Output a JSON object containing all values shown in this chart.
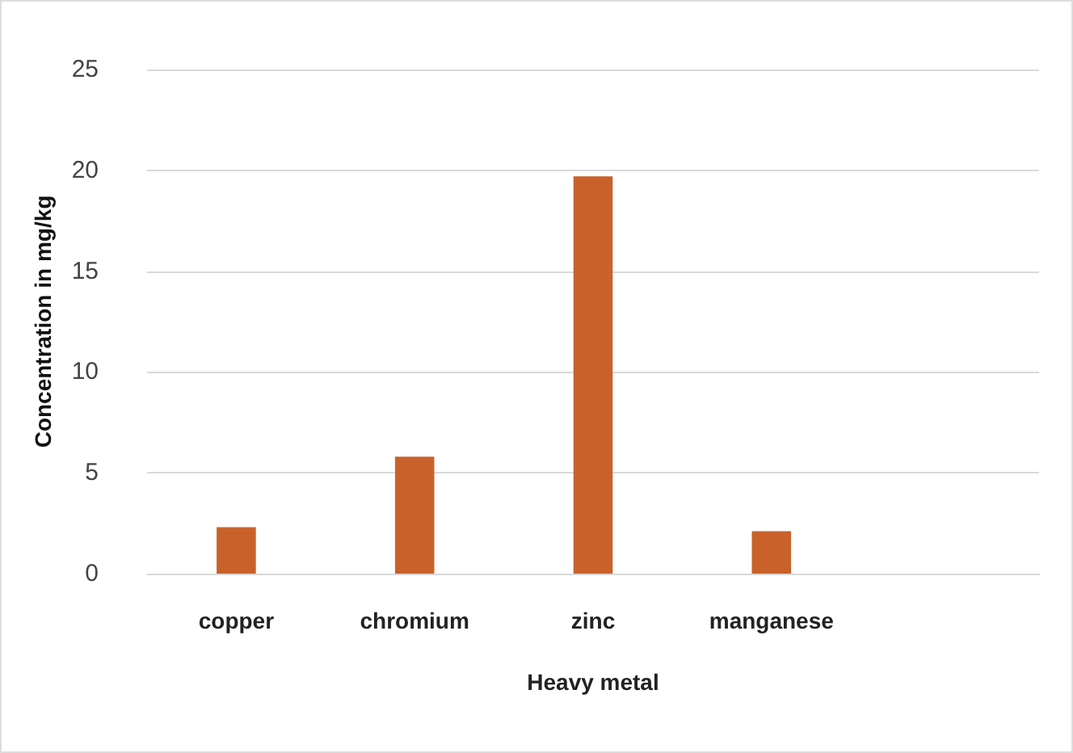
{
  "chart_data": {
    "type": "bar",
    "xlabel": "Heavy metal",
    "ylabel": "Concentration in mg/kg",
    "categories": [
      "copper",
      "chromium",
      "zinc",
      "manganese",
      null
    ],
    "values": [
      2.3,
      5.8,
      19.7,
      2.1,
      null
    ],
    "color": "#c8622a",
    "ylim": [
      0,
      25
    ],
    "yticks": [
      0,
      5,
      10,
      15,
      20,
      25
    ],
    "grid": "y"
  }
}
